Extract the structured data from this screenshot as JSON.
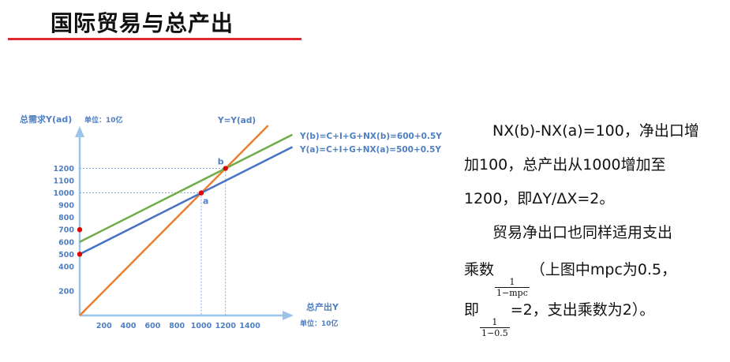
{
  "slide": {
    "title": "国际贸易与总产出"
  },
  "chart_data": {
    "type": "line",
    "ylabel": "总需求Y(ad)",
    "yunit": "单位：10亿",
    "xlabel": "总产出Y",
    "xunit": "单位：10亿",
    "xlim": [
      0,
      1600
    ],
    "ylim": [
      0,
      1700
    ],
    "x_ticks": [
      200,
      400,
      600,
      800,
      1000,
      1200,
      1400
    ],
    "y_ticks": [
      200,
      400,
      500,
      600,
      700,
      800,
      900,
      1000,
      1100,
      1200
    ],
    "series": [
      {
        "name": "Y=Y(ad)",
        "color": "#ed7d31",
        "x": [
          0,
          1550
        ],
        "y": [
          0,
          1550
        ]
      },
      {
        "name": "Y(b)=C+I+G+NX(b)=600+0.5Y",
        "color": "#70ad47",
        "x": [
          0,
          1750
        ],
        "y": [
          600,
          1475
        ]
      },
      {
        "name": "Y(a)=C+I+G+NX(a)=500+0.5Y",
        "color": "#4472c4",
        "x": [
          0,
          1750
        ],
        "y": [
          500,
          1375
        ]
      }
    ],
    "points": [
      {
        "label": "a",
        "x": 1000,
        "y": 1000
      },
      {
        "label": "b",
        "x": 1200,
        "y": 1200
      },
      {
        "label": "",
        "x": 0,
        "y": 500
      },
      {
        "label": "",
        "x": 0,
        "y": 700
      }
    ]
  },
  "text": {
    "line1": "NX(b)-NX(a)=100，净出口增",
    "line2": "加100，总产出从1000增加至",
    "line3": "1200，即ΔY/ΔX=2。",
    "line4": "贸易净出口也同样适用支出",
    "line5_pre": "乘数",
    "frac1_num": "1",
    "frac1_den": "1−mpc",
    "line5_post": "（上图中mpc为0.5，",
    "line6_pre": "即",
    "frac2_num": "1",
    "frac2_den": "1−0.5",
    "line6_post": "=2，支出乘数为2）。"
  }
}
